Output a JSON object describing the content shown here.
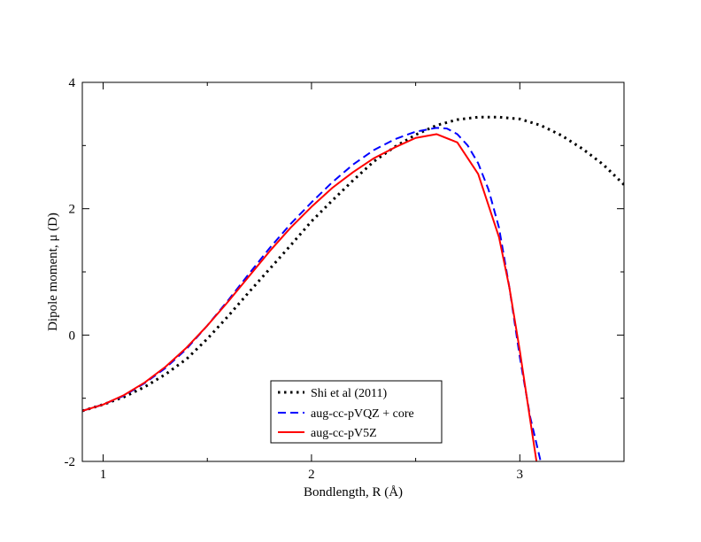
{
  "chart_data": {
    "type": "line",
    "title": "",
    "xlabel": "Bondlength, R (Å)",
    "ylabel": "Dipole moment, μ (D)",
    "xlim": [
      0.9,
      3.5
    ],
    "ylim": [
      -2,
      4
    ],
    "x_ticks": [
      1,
      2,
      3
    ],
    "x_tick_labels": [
      "1",
      "2",
      "3"
    ],
    "y_ticks": [
      -2,
      0,
      2,
      4
    ],
    "y_tick_labels": [
      "-2",
      "0",
      "2",
      "4"
    ],
    "grid": false,
    "legend_position": "bottom-center",
    "series": [
      {
        "name": "Shi et al (2011)",
        "style": "dotted",
        "color": "#000000",
        "x": [
          0.9,
          1.0,
          1.1,
          1.2,
          1.3,
          1.4,
          1.5,
          1.6,
          1.7,
          1.8,
          1.9,
          2.0,
          2.1,
          2.2,
          2.3,
          2.4,
          2.5,
          2.6,
          2.7,
          2.8,
          2.9,
          3.0,
          3.1,
          3.2,
          3.3,
          3.4,
          3.5
        ],
        "values": [
          -1.2,
          -1.1,
          -0.98,
          -0.82,
          -0.62,
          -0.38,
          -0.06,
          0.3,
          0.68,
          1.05,
          1.42,
          1.8,
          2.13,
          2.45,
          2.75,
          2.98,
          3.17,
          3.32,
          3.41,
          3.45,
          3.45,
          3.42,
          3.32,
          3.16,
          2.95,
          2.7,
          2.38
        ]
      },
      {
        "name": "aug-cc-pVQZ + core",
        "style": "dashed",
        "color": "#0000ff",
        "x": [
          0.9,
          1.0,
          1.1,
          1.2,
          1.3,
          1.4,
          1.5,
          1.6,
          1.7,
          1.8,
          1.9,
          2.0,
          2.1,
          2.2,
          2.3,
          2.4,
          2.5,
          2.6,
          2.65,
          2.7,
          2.75,
          2.8,
          2.85,
          2.9,
          2.95,
          3.0,
          3.05,
          3.1
        ],
        "values": [
          -1.2,
          -1.1,
          -0.96,
          -0.76,
          -0.52,
          -0.22,
          0.15,
          0.55,
          0.97,
          1.38,
          1.76,
          2.1,
          2.42,
          2.7,
          2.93,
          3.1,
          3.22,
          3.28,
          3.27,
          3.18,
          3.0,
          2.72,
          2.3,
          1.7,
          0.75,
          -0.35,
          -1.3,
          -2.0
        ]
      },
      {
        "name": "aug-cc-pV5Z",
        "style": "solid",
        "color": "#ff0000",
        "x": [
          0.9,
          1.0,
          1.1,
          1.2,
          1.3,
          1.4,
          1.5,
          1.6,
          1.7,
          1.8,
          1.9,
          2.0,
          2.1,
          2.2,
          2.3,
          2.4,
          2.5,
          2.6,
          2.7,
          2.8,
          2.9,
          2.95,
          3.0,
          3.05,
          3.08
        ],
        "values": [
          -1.2,
          -1.1,
          -0.95,
          -0.75,
          -0.5,
          -0.2,
          0.15,
          0.53,
          0.93,
          1.33,
          1.7,
          2.03,
          2.33,
          2.58,
          2.8,
          2.97,
          3.12,
          3.18,
          3.05,
          2.55,
          1.55,
          0.75,
          -0.25,
          -1.35,
          -2.0
        ]
      }
    ]
  }
}
